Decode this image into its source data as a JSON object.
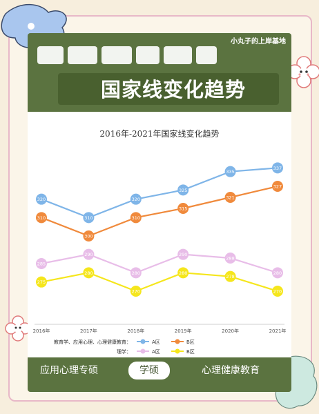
{
  "watermark": "小丸子的上岸基地",
  "header_title": "国家线变化趋势",
  "tags": [
    "应用心理专硕",
    "学硕",
    "心理健康教育"
  ],
  "colors": {
    "card": "#5b7340",
    "edu_a": "#7fb5e8",
    "edu_b": "#f08a3c",
    "sci_a": "#e8bde8",
    "sci_b": "#f5e61c"
  },
  "chart_data": {
    "type": "line",
    "title": "2016年-2021年国家线变化趋势",
    "categories": [
      "2016年",
      "2017年",
      "2018年",
      "2019年",
      "2020年",
      "2021年"
    ],
    "ylim": [
      255,
      345
    ],
    "legend": {
      "groups": [
        {
          "label": "教育学、应用心理、心理健康教育：",
          "items": [
            "A区",
            "B区"
          ]
        },
        {
          "label": "理学：",
          "items": [
            "A区",
            "B区"
          ]
        }
      ],
      "placement": "bottom"
    },
    "series": [
      {
        "name": "A区",
        "group": "教育学、应用心理、心理健康教育",
        "values": [
          320,
          310,
          320,
          325,
          335,
          337
        ],
        "color": "#7fb5e8"
      },
      {
        "name": "B区",
        "group": "教育学、应用心理、心理健康教育",
        "values": [
          310,
          300,
          310,
          315,
          321,
          327
        ],
        "color": "#f08a3c"
      },
      {
        "name": "A区",
        "group": "理学",
        "values": [
          285,
          290,
          280,
          290,
          288,
          280
        ],
        "color": "#e8bde8"
      },
      {
        "name": "B区",
        "group": "理学",
        "values": [
          275,
          280,
          270,
          280,
          278,
          270
        ],
        "color": "#f5e61c"
      }
    ]
  }
}
